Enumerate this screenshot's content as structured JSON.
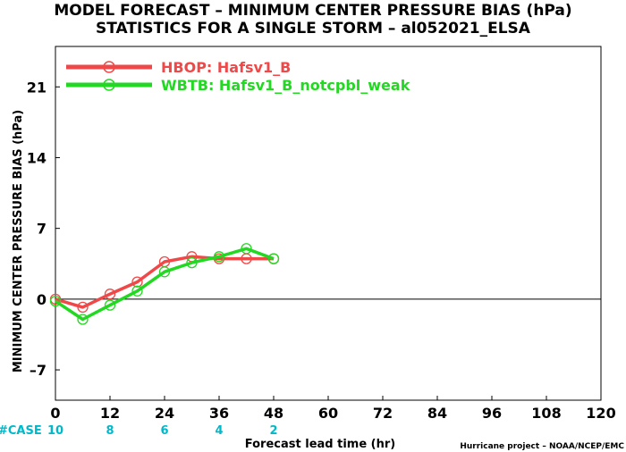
{
  "chart_data": {
    "type": "line",
    "title": "MODEL FORECAST – MINIMUM CENTER PRESSURE BIAS (hPa)",
    "subtitle": "STATISTICS FOR A SINGLE STORM – al052021_ELSA",
    "xlabel": "Forecast lead time (hr)",
    "ylabel": "MINIMUM CENTER PRESSURE BIAS (hPa)",
    "xlim": [
      0,
      120
    ],
    "ylim": [
      -10,
      25
    ],
    "x_ticks": [
      "0",
      "12",
      "24",
      "36",
      "48",
      "60",
      "72",
      "84",
      "96",
      "108",
      "120"
    ],
    "y_ticks": [
      "–7",
      "0",
      "7",
      "14",
      "21"
    ],
    "zero_line": true,
    "grid": false,
    "legend_position": "top-left",
    "series": [
      {
        "name": "HBOP: Hafsv1_B",
        "color": "#f04848",
        "x": [
          0,
          6,
          12,
          18,
          24,
          30,
          36,
          42,
          48
        ],
        "y": [
          0.0,
          -0.8,
          0.5,
          1.7,
          3.7,
          4.2,
          4.0,
          4.0,
          4.0
        ]
      },
      {
        "name": "WBTB: Hafsv1_B_notcpbl_weak",
        "color": "#22d822",
        "x": [
          0,
          6,
          12,
          18,
          24,
          30,
          36,
          42,
          48
        ],
        "y": [
          -0.2,
          -2.0,
          -0.6,
          0.8,
          2.7,
          3.6,
          4.2,
          5.0,
          4.0
        ]
      }
    ],
    "case_label": "#CASE",
    "case_counts": {
      "x": [
        0,
        12,
        24,
        36,
        48
      ],
      "values": [
        "10",
        "8",
        "6",
        "4",
        "2"
      ]
    },
    "credit": "Hurricane project – NOAA/NCEP/EMC"
  }
}
